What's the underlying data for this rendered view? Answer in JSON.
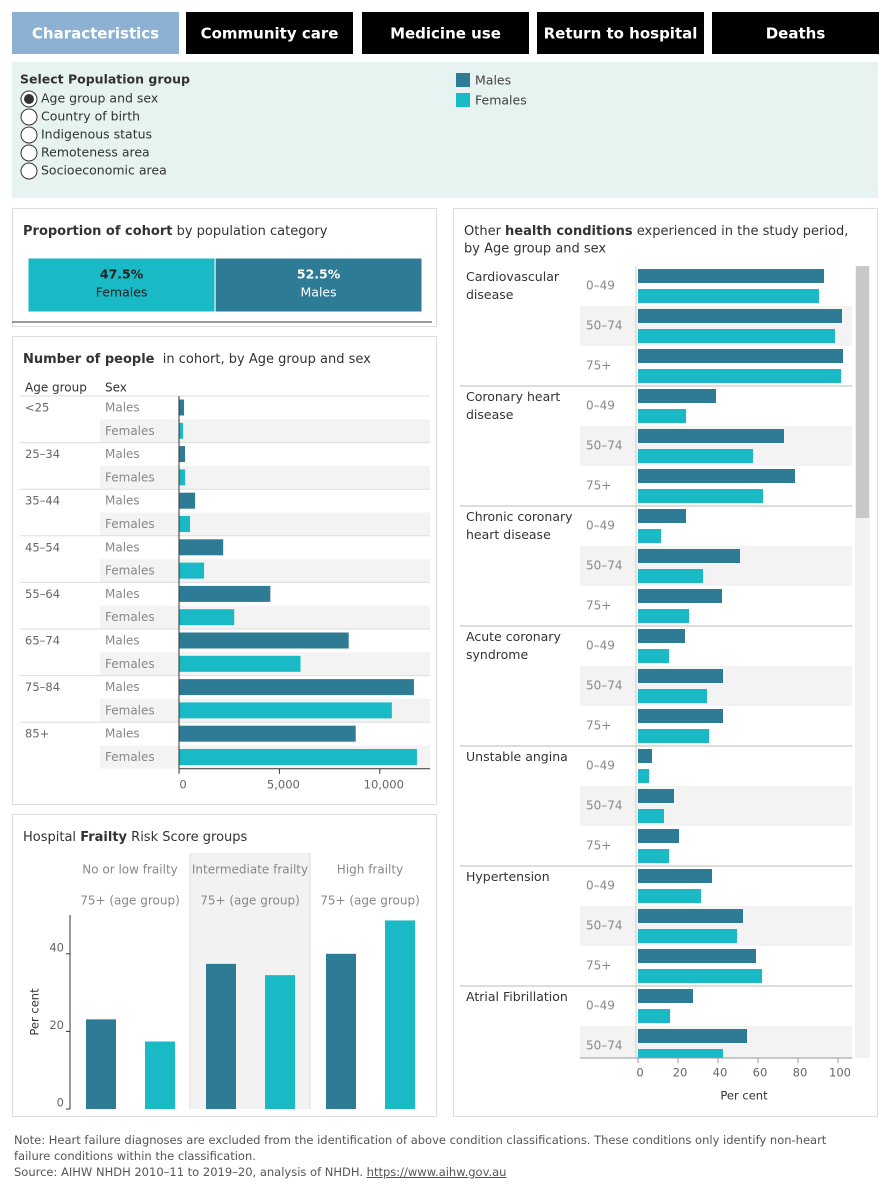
{
  "tabs": [
    "Characteristics",
    "Community care",
    "Medicine use",
    "Return to hospital",
    "Deaths"
  ],
  "active_tab": 0,
  "filter": {
    "label": "Select Population group",
    "options": [
      "Age group and sex",
      "Country of birth",
      "Indigenous status",
      "Remoteness area",
      "Socioeconomic area"
    ],
    "selected": 0
  },
  "legend": [
    {
      "name": "Males",
      "color": "#2e7b95"
    },
    {
      "name": "Females",
      "color": "#19b9c5"
    }
  ],
  "chart_data": [
    {
      "type": "stacked-bar",
      "title": [
        {
          "text": "Proportion of cohort",
          "bold": true
        },
        {
          "text": " by population category",
          "bold": false
        }
      ],
      "series": [
        {
          "name": "Females",
          "color": "#19b9c5",
          "values": [
            47.5
          ],
          "value_labels": [
            "47.5%"
          ]
        },
        {
          "name": "Males",
          "color": "#2e7b95",
          "values": [
            52.5
          ],
          "value_labels": [
            "52.5%"
          ]
        }
      ],
      "xlim": [
        0,
        100
      ]
    },
    {
      "type": "hbar",
      "title": [
        {
          "text": "Number of people",
          "bold": true
        },
        {
          "text": "  in cohort, by Age group and sex",
          "bold": false
        }
      ],
      "column_headers": [
        "Age group",
        "Sex"
      ],
      "categories": [
        "<25",
        "25–34",
        "35–44",
        "45–54",
        "55–64",
        "65–74",
        "75–84",
        "85+"
      ],
      "series": [
        {
          "name": "Males",
          "color": "#2e7b95",
          "values": [
            250,
            300,
            800,
            2200,
            4550,
            8450,
            11700,
            8800
          ]
        },
        {
          "name": "Females",
          "color": "#19b9c5",
          "values": [
            200,
            300,
            550,
            1250,
            2750,
            6050,
            10600,
            11850
          ]
        }
      ],
      "xlim": [
        0,
        12500
      ],
      "xticks": [
        0,
        {
          "value": 5000,
          "label": "5,000"
        },
        {
          "value": 10000,
          "label": "10,000"
        }
      ]
    },
    {
      "type": "bar",
      "title": [
        {
          "text": "Hospital ",
          "bold": false
        },
        {
          "text": "Frailty",
          "bold": true
        },
        {
          "text": " Risk Score groups",
          "bold": false
        }
      ],
      "panels": [
        "No or low frailty",
        "Intermediate frailty",
        "High frailty"
      ],
      "panel_subtitle": "75+ (age group)",
      "series": [
        {
          "color": "#2e7b95",
          "values": [
            23.1,
            37.4,
            40
          ]
        },
        {
          "color": "#19b9c5",
          "values": [
            17.4,
            34.5,
            48.6
          ]
        }
      ],
      "ylabel": "Per cent",
      "ylim": [
        0,
        50
      ],
      "yticks": [
        0,
        20,
        40
      ]
    },
    {
      "type": "grouped-hbar",
      "title": [
        {
          "text": "Other ",
          "bold": false
        },
        {
          "text": "health conditions",
          "bold": true
        },
        {
          "text": " experienced in the study period,",
          "bold": false
        }
      ],
      "subtitle": "by Age group and sex",
      "colors": [
        "#2e7b95",
        "#19b9c5"
      ],
      "conditions": [
        {
          "name": "Cardiovascular disease",
          "age_groups": [
            "0–49",
            "50–74",
            "75+"
          ],
          "series": [
            [
              93,
              102,
              102.5
            ],
            [
              90.5,
              98.5,
              101.5
            ]
          ]
        },
        {
          "name": "Coronary heart disease",
          "age_groups": [
            "0–49",
            "50–74",
            "75+"
          ],
          "series": [
            [
              39,
              73,
              78.5
            ],
            [
              24,
              57.5,
              62.5
            ]
          ]
        },
        {
          "name": "Chronic coronary heart disease",
          "age_groups": [
            "0–49",
            "50–74",
            "75+"
          ],
          "series": [
            [
              24,
              51,
              42
            ],
            [
              11.5,
              32.5,
              25.5
            ]
          ]
        },
        {
          "name": "Acute coronary syndrome",
          "age_groups": [
            "0–49",
            "50–74",
            "75+"
          ],
          "series": [
            [
              23.5,
              42.5,
              42.5
            ],
            [
              15.5,
              34.5,
              35.5
            ]
          ]
        },
        {
          "name": "Unstable angina",
          "age_groups": [
            "0–49",
            "50–74",
            "75+"
          ],
          "series": [
            [
              7,
              18,
              20.5
            ],
            [
              5.5,
              13,
              15.5
            ]
          ]
        },
        {
          "name": "Hypertension",
          "age_groups": [
            "0–49",
            "50–74",
            "75+"
          ],
          "series": [
            [
              37,
              52.5,
              59
            ],
            [
              31.5,
              49.5,
              62
            ]
          ]
        },
        {
          "name": "Atrial Fibrillation",
          "age_groups": [
            "0–49",
            "50–74"
          ],
          "series": [
            [
              27.5,
              54.5
            ],
            [
              16,
              42.5
            ]
          ]
        }
      ],
      "xlabel": "Per cent",
      "xlim": [
        0,
        107
      ],
      "xticks": [
        0,
        20,
        40,
        60,
        80,
        100
      ]
    }
  ],
  "note": "Note: Heart failure diagnoses are excluded from the identification of above condition classifications. These conditions only identify non-heart failure conditions within the classification.",
  "source": "Source: AIHW NHDH 2010–11 to 2019–20, analysis of NHDH. ",
  "source_link": "https://www.aihw.gov.au"
}
